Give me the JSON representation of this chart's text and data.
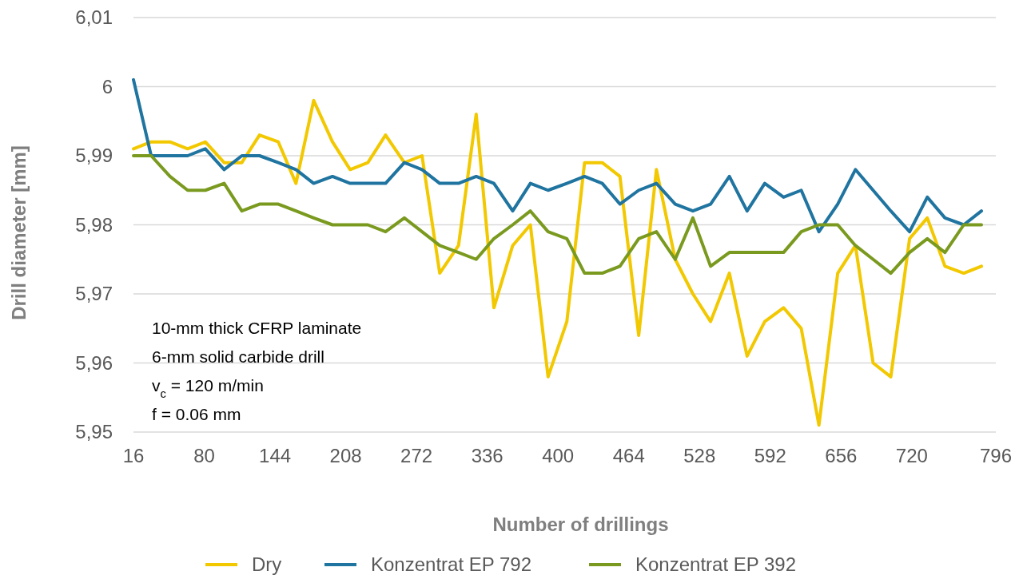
{
  "chart_data": {
    "type": "line",
    "xlabel": "Number of drillings",
    "ylabel": "Drill diameter  [mm]",
    "x": [
      16,
      32,
      49,
      65,
      81,
      98,
      114,
      130,
      147,
      163,
      179,
      196,
      212,
      228,
      244,
      261,
      277,
      293,
      310,
      326,
      342,
      359,
      375,
      391,
      408,
      424,
      440,
      456,
      473,
      489,
      506,
      522,
      538,
      555,
      571,
      587,
      604,
      620,
      636,
      653,
      669,
      685,
      701,
      718,
      734,
      750,
      767,
      783
    ],
    "xlim": [
      16,
      796
    ],
    "xticks": [
      16,
      80,
      144,
      208,
      272,
      336,
      400,
      464,
      528,
      592,
      656,
      720,
      796
    ],
    "ylim": [
      5.95,
      6.01
    ],
    "yticks": [
      {
        "value": 5.95,
        "label": "5,95"
      },
      {
        "value": 5.96,
        "label": "5,96"
      },
      {
        "value": 5.97,
        "label": "5,97"
      },
      {
        "value": 5.98,
        "label": "5,98"
      },
      {
        "value": 5.99,
        "label": "5,99"
      },
      6,
      {
        "value": 6.01,
        "label": "6,01"
      }
    ],
    "grid": "y",
    "legend": "bottom",
    "line_style": "solid",
    "marker": "none",
    "series": [
      {
        "name": "Dry",
        "color": "#f2c800",
        "values": [
          5.991,
          5.992,
          5.992,
          5.991,
          5.992,
          5.989,
          5.989,
          5.993,
          5.992,
          5.986,
          5.998,
          5.992,
          5.988,
          5.989,
          5.993,
          5.989,
          5.99,
          5.973,
          5.977,
          5.996,
          5.968,
          5.977,
          5.98,
          5.958,
          5.966,
          5.989,
          5.989,
          5.987,
          5.964,
          5.988,
          5.975,
          5.97,
          5.966,
          5.973,
          5.961,
          5.966,
          5.968,
          5.965,
          5.951,
          5.973,
          5.977,
          5.96,
          5.958,
          5.978,
          5.981,
          5.974,
          5.973,
          5.974
        ]
      },
      {
        "name": "Konzentrat EP 792",
        "color": "#1f74a0",
        "values": [
          6.001,
          5.99,
          5.99,
          5.99,
          5.991,
          5.988,
          5.99,
          5.99,
          5.989,
          5.988,
          5.986,
          5.987,
          5.986,
          5.986,
          5.986,
          5.989,
          5.988,
          5.986,
          5.986,
          5.987,
          5.986,
          5.982,
          5.986,
          5.985,
          5.986,
          5.987,
          5.986,
          5.983,
          5.985,
          5.986,
          5.983,
          5.982,
          5.983,
          5.987,
          5.982,
          5.986,
          5.984,
          5.985,
          5.979,
          5.983,
          5.988,
          5.985,
          5.982,
          5.979,
          5.984,
          5.981,
          5.98,
          5.982
        ]
      },
      {
        "name": "Konzentrat EP 392",
        "color": "#7a9a1f",
        "values": [
          5.99,
          5.99,
          5.987,
          5.985,
          5.985,
          5.986,
          5.982,
          5.983,
          5.983,
          5.982,
          5.981,
          5.98,
          5.98,
          5.98,
          5.979,
          5.981,
          5.979,
          5.977,
          5.976,
          5.975,
          5.978,
          5.98,
          5.982,
          5.979,
          5.978,
          5.973,
          5.973,
          5.974,
          5.978,
          5.979,
          5.975,
          5.981,
          5.974,
          5.976,
          5.976,
          5.976,
          5.976,
          5.979,
          5.98,
          5.98,
          5.977,
          5.975,
          5.973,
          5.976,
          5.978,
          5.976,
          5.98,
          5.98
        ]
      }
    ],
    "annotations": [
      "10-mm thick CFRP laminate",
      "6-mm solid carbide drill",
      "v$_{c}$ = 120 m/min",
      "f = 0.06 mm"
    ]
  }
}
